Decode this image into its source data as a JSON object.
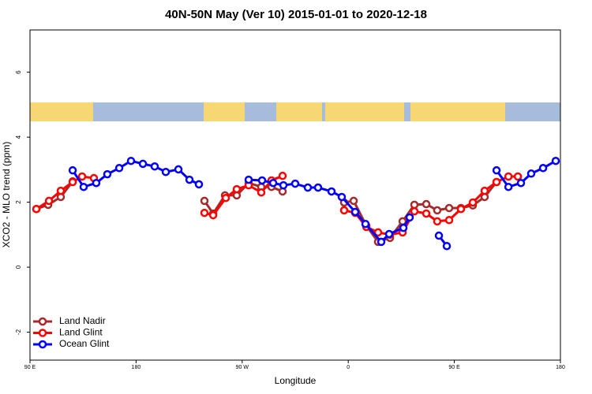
{
  "chart_data": {
    "type": "line",
    "title": "40N-50N May (Ver 10)   2015-01-01 to 2020-12-18",
    "xlabel": "Longitude",
    "ylabel": "XCO2 - MLO trend (ppm)",
    "xlim": [
      90,
      540
    ],
    "xticks": [
      {
        "value": 90,
        "label": "90 E"
      },
      180,
      {
        "value": 270,
        "label": "90 W"
      },
      {
        "value": 360,
        "label": "0"
      },
      {
        "value": 450,
        "label": "90 E"
      },
      {
        "value": 540,
        "label": "180"
      }
    ],
    "ylim": [
      -2.86,
      7.3
    ],
    "yticks": [
      -2,
      0,
      2,
      4,
      6
    ],
    "legend": "bottom-left",
    "series": [
      {
        "name": "Land Nadir",
        "color": "#a52a2a",
        "x": [
          95.4,
          105.4,
          116.1,
          126.2,
          null,
          238.0,
          245.4,
          255.4,
          265.4,
          275.5,
          286.2,
          294.9,
          304.3,
          null,
          356.5,
          364.6,
          375.3,
          385.3,
          395.4,
          406.1,
          416.1,
          426.2,
          435.5,
          445.6,
          455.6,
          465.7,
          475.7,
          485.8
        ],
        "values": [
          1.79,
          1.92,
          2.16,
          2.64,
          null,
          2.04,
          1.65,
          2.21,
          2.21,
          2.59,
          2.47,
          2.47,
          2.33,
          null,
          1.99,
          2.04,
          1.28,
          0.78,
          0.9,
          1.41,
          1.92,
          1.94,
          1.75,
          1.82,
          1.82,
          1.9,
          2.16,
          2.62
        ]
      },
      {
        "name": "Land Glint",
        "color": "#ff0000",
        "x": [
          95.4,
          106.1,
          116.1,
          126.2,
          134.2,
          144.2,
          null,
          238.0,
          245.4,
          256.1,
          265.4,
          275.5,
          286.2,
          294.9,
          304.3,
          null,
          356.5,
          365.9,
          375.3,
          385.3,
          395.4,
          406.1,
          416.1,
          426.2,
          435.5,
          445.6,
          455.6,
          465.7,
          475.7,
          485.8,
          495.9,
          503.9
        ],
        "values": [
          1.79,
          2.04,
          2.35,
          2.62,
          2.79,
          2.74,
          null,
          1.67,
          1.6,
          2.13,
          2.4,
          2.52,
          2.3,
          2.67,
          2.81,
          null,
          1.75,
          1.67,
          1.24,
          1.07,
          1.0,
          1.07,
          1.72,
          1.65,
          1.41,
          1.45,
          1.79,
          1.99,
          2.35,
          2.62,
          2.79,
          2.79
        ]
      },
      {
        "name": "Ocean Glint",
        "color": "#0000ff",
        "x": [
          126.2,
          135.5,
          146.2,
          155.6,
          165.7,
          175.7,
          185.8,
          195.8,
          205.2,
          215.9,
          225.3,
          233.3,
          null,
          275.5,
          286.9,
          296.3,
          305.0,
          315.0,
          325.7,
          334.4,
          345.8,
          354.5,
          365.9,
          374.6,
          388.0,
          394.7,
          406.8,
          412.1,
          null,
          436.9,
          443.6,
          null,
          485.8,
          495.9,
          506.5,
          515.2,
          525.3,
          536.0
        ],
        "values": [
          2.98,
          2.47,
          2.59,
          2.86,
          3.05,
          3.27,
          3.18,
          3.1,
          2.93,
          3.01,
          2.69,
          2.55,
          null,
          2.69,
          2.67,
          2.59,
          2.52,
          2.57,
          2.45,
          2.45,
          2.33,
          2.16,
          1.7,
          1.33,
          0.78,
          1.02,
          1.21,
          1.53,
          null,
          0.97,
          0.65,
          null,
          2.98,
          2.47,
          2.59,
          2.88,
          3.05,
          3.27
        ]
      }
    ]
  }
}
